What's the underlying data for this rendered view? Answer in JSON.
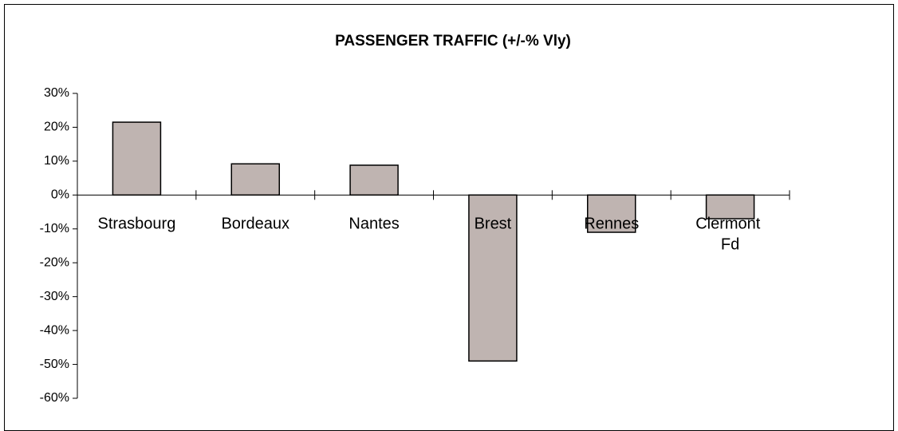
{
  "chart_data": {
    "type": "bar",
    "title": "PASSENGER TRAFFIC (+/-% Vly)",
    "categories": [
      "Strasbourg",
      "Bordeaux",
      "Nantes",
      "Brest",
      "Rennes",
      "Clermont Fd"
    ],
    "values": [
      21.5,
      9.2,
      8.8,
      -49,
      -11,
      -7
    ],
    "color": "#bfb4b1",
    "ylim": [
      -60,
      30
    ],
    "yticks": [
      {
        "value": -60,
        "label": "-60%"
      },
      {
        "value": -50,
        "label": "-50%"
      },
      {
        "value": -40,
        "label": "-40%"
      },
      {
        "value": -30,
        "label": "-30%"
      },
      {
        "value": -20,
        "label": "-20%"
      },
      {
        "value": -10,
        "label": "-10%"
      },
      {
        "value": 0,
        "label": "0%"
      },
      {
        "value": 10,
        "label": "10%"
      },
      {
        "value": 20,
        "label": "20%"
      },
      {
        "value": 30,
        "label": "30%"
      }
    ],
    "grid": false
  }
}
